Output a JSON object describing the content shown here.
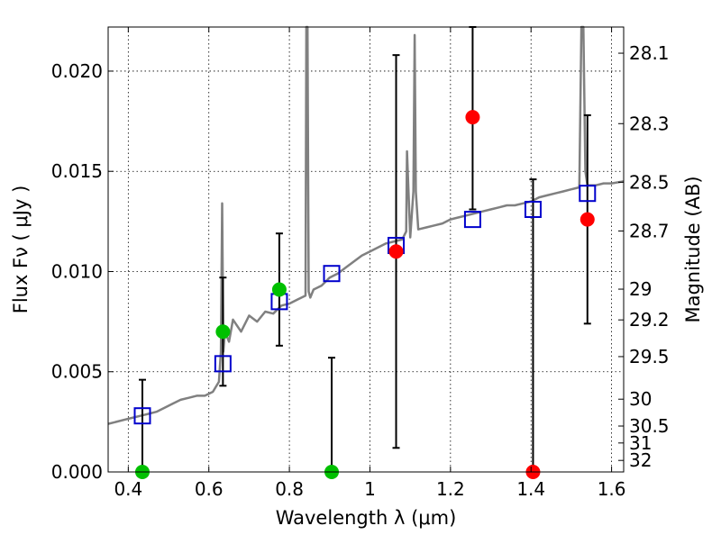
{
  "chart_data": {
    "type": "scatter",
    "xlabel": "Wavelength  λ (μm)",
    "ylabel": "Flux  Fν  ( μJy )",
    "y2label": "Magnitude (AB)",
    "xlim": [
      0.35,
      1.63
    ],
    "ylim": [
      0.0,
      0.0222
    ],
    "grid": true,
    "x_ticks": [
      {
        "v": 0.4,
        "label": "0.4"
      },
      {
        "v": 0.6,
        "label": "0.6"
      },
      {
        "v": 0.8,
        "label": "0.8"
      },
      {
        "v": 1.0,
        "label": "1"
      },
      {
        "v": 1.2,
        "label": "1.2"
      },
      {
        "v": 1.4,
        "label": "1.4"
      },
      {
        "v": 1.6,
        "label": "1.6"
      }
    ],
    "y_ticks": [
      {
        "v": 0.0,
        "label": "0.000"
      },
      {
        "v": 0.005,
        "label": "0.005"
      },
      {
        "v": 0.01,
        "label": "0.010"
      },
      {
        "v": 0.015,
        "label": "0.015"
      },
      {
        "v": 0.02,
        "label": "0.020"
      }
    ],
    "y2_ticks": [
      {
        "mag": 28.1,
        "label": "28.1"
      },
      {
        "mag": 28.3,
        "label": "28.3"
      },
      {
        "mag": 28.5,
        "label": "28.5"
      },
      {
        "mag": 28.7,
        "label": "28.7"
      },
      {
        "mag": 29,
        "label": "29"
      },
      {
        "mag": 29.2,
        "label": "29.2"
      },
      {
        "mag": 29.5,
        "label": "29.5"
      },
      {
        "mag": 30,
        "label": "30"
      },
      {
        "mag": 30.5,
        "label": "30.5"
      },
      {
        "mag": 31,
        "label": "31"
      },
      {
        "mag": 32,
        "label": "32"
      }
    ],
    "colors": {
      "template": "#808080",
      "model": "#0000cc",
      "detection": "#00c000",
      "upper_limit": "#ff0000",
      "errorbar": "#000000",
      "grid": "#000000"
    },
    "template_spectrum": {
      "x": [
        0.35,
        0.37,
        0.39,
        0.41,
        0.43,
        0.45,
        0.47,
        0.49,
        0.51,
        0.53,
        0.55,
        0.57,
        0.59,
        0.61,
        0.625,
        0.63,
        0.633,
        0.636,
        0.64,
        0.65,
        0.66,
        0.68,
        0.7,
        0.72,
        0.74,
        0.76,
        0.78,
        0.8,
        0.82,
        0.84,
        0.842,
        0.845,
        0.848,
        0.852,
        0.86,
        0.88,
        0.9,
        0.92,
        0.94,
        0.96,
        0.98,
        1.0,
        1.02,
        1.04,
        1.06,
        1.08,
        1.09,
        1.092,
        1.1,
        1.108,
        1.111,
        1.114,
        1.12,
        1.14,
        1.16,
        1.18,
        1.2,
        1.22,
        1.24,
        1.26,
        1.28,
        1.3,
        1.32,
        1.34,
        1.36,
        1.38,
        1.4,
        1.42,
        1.44,
        1.46,
        1.48,
        1.5,
        1.52,
        1.525,
        1.53,
        1.535,
        1.54,
        1.56,
        1.58,
        1.6,
        1.63
      ],
      "y": [
        0.0024,
        0.0025,
        0.0026,
        0.0027,
        0.0028,
        0.0029,
        0.003,
        0.0032,
        0.0034,
        0.0036,
        0.0037,
        0.0038,
        0.0038,
        0.004,
        0.0045,
        0.006,
        0.0134,
        0.006,
        0.007,
        0.0065,
        0.0076,
        0.007,
        0.0078,
        0.0075,
        0.008,
        0.0079,
        0.0083,
        0.0084,
        0.0086,
        0.0088,
        0.0222,
        0.0222,
        0.009,
        0.0087,
        0.0091,
        0.0093,
        0.0097,
        0.0099,
        0.0102,
        0.0105,
        0.0108,
        0.011,
        0.0112,
        0.0114,
        0.0115,
        0.0116,
        0.012,
        0.016,
        0.0117,
        0.014,
        0.0218,
        0.014,
        0.0121,
        0.0122,
        0.0123,
        0.0124,
        0.0126,
        0.0127,
        0.0128,
        0.0129,
        0.013,
        0.0131,
        0.0132,
        0.0133,
        0.0133,
        0.0134,
        0.0135,
        0.0137,
        0.0138,
        0.0139,
        0.014,
        0.0141,
        0.0142,
        0.0222,
        0.0222,
        0.015,
        0.0143,
        0.0143,
        0.0144,
        0.0144,
        0.0145
      ]
    },
    "model_points": [
      {
        "x": 0.435,
        "y": 0.0028
      },
      {
        "x": 0.635,
        "y": 0.0054
      },
      {
        "x": 0.775,
        "y": 0.0085
      },
      {
        "x": 0.905,
        "y": 0.0099
      },
      {
        "x": 1.065,
        "y": 0.0113
      },
      {
        "x": 1.255,
        "y": 0.0126
      },
      {
        "x": 1.405,
        "y": 0.0131
      },
      {
        "x": 1.54,
        "y": 0.0139
      }
    ],
    "detections": [
      {
        "x": 0.435,
        "y": 0.0,
        "yerr": [
          0.0,
          0.0046
        ]
      },
      {
        "x": 0.635,
        "y": 0.007,
        "yerr": [
          0.0043,
          0.0097
        ]
      },
      {
        "x": 0.775,
        "y": 0.0091,
        "yerr": [
          0.0063,
          0.0119
        ]
      },
      {
        "x": 0.905,
        "y": 0.0,
        "yerr": [
          0.0,
          0.0057
        ]
      }
    ],
    "upper_limits": [
      {
        "x": 1.065,
        "y": 0.011,
        "yerr": [
          0.0012,
          0.0208
        ]
      },
      {
        "x": 1.255,
        "y": 0.0177,
        "yerr": [
          0.0131,
          0.0222
        ]
      },
      {
        "x": 1.405,
        "y": 0.0,
        "yerr": [
          0.0,
          0.0146
        ]
      },
      {
        "x": 1.54,
        "y": 0.0126,
        "yerr": [
          0.0074,
          0.0178
        ]
      }
    ]
  }
}
